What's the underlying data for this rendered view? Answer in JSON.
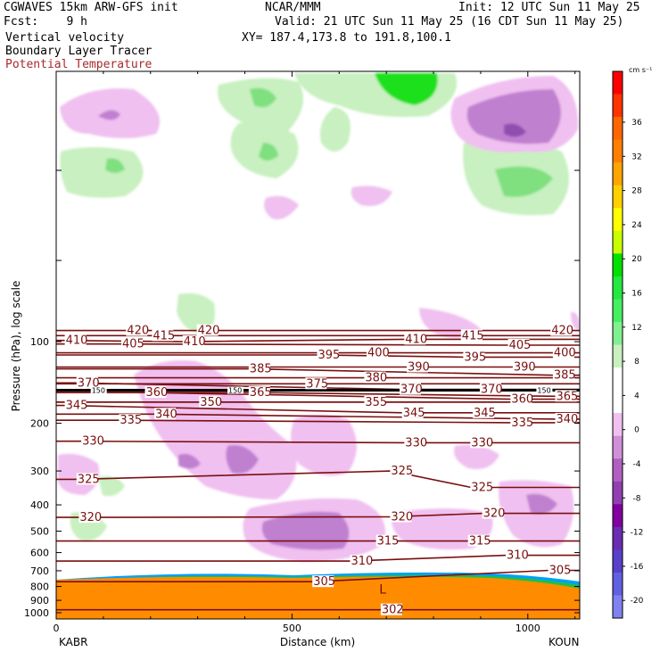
{
  "header": {
    "title_left": "CGWAVES 15km ARW-GFS init",
    "org": "NCAR/MMM",
    "init": "Init: 12 UTC Sun 11 May 25",
    "fcst": "Fcst:    9 h",
    "valid": "Valid: 21 UTC Sun 11 May 25 (16 CDT Sun 11 May 25)",
    "field1": "Vertical velocity",
    "xy": "XY= 187.4,173.8 to 191.8,100.1",
    "field2": "Boundary Layer Tracer",
    "field3": "Potential Temperature"
  },
  "colors": {
    "theta": "#7a0f0f",
    "tropopause": "#000000",
    "pbl_fill": "#ff8c00",
    "upward_light": "#c8f0c0",
    "upward_mid": "#80e080",
    "upward_strong": "#1ee01e",
    "down_light": "#f0c0f0",
    "down_mid": "#c080d0",
    "down_strong": "#9050b0"
  },
  "chart_data": {
    "type": "cross-section",
    "xlabel": "Distance (km)",
    "ylabel": "Pressure (hPa), log scale",
    "x_ticks": [
      0,
      500,
      1000
    ],
    "y_ticks": [
      100,
      200,
      300,
      400,
      500,
      600,
      700,
      800,
      900,
      1000
    ],
    "endpoints": {
      "left": "KABR",
      "right": "KOUN"
    },
    "colorbar": {
      "units": "cm s⁻¹",
      "labels": [
        "36",
        "32",
        "28",
        "24",
        "20",
        "16",
        "12",
        "8",
        "4",
        "0",
        "-4",
        "-8",
        "-12",
        "-16",
        "-20"
      ],
      "colors": [
        "#ff0000",
        "#ff3300",
        "#ff6600",
        "#ff8000",
        "#ffa500",
        "#ffd000",
        "#ffff00",
        "#c8ff00",
        "#00e000",
        "#22e840",
        "#44f060",
        "#80f090",
        "#c8f0c0",
        "#ffffff",
        "#ffffff",
        "#f0c0f0",
        "#d090d8",
        "#b060c0",
        "#9040b0",
        "#8000a0",
        "#6a2cb0",
        "#5a40c8",
        "#6060e0",
        "#8080f0"
      ]
    },
    "theta_labels": [
      {
        "text": "420",
        "x": 150,
        "p": 91
      },
      {
        "text": "420",
        "x": 300,
        "p": 91
      },
      {
        "text": "420",
        "x": 1050,
        "p": 91
      },
      {
        "text": "415",
        "x": 205,
        "p": 95
      },
      {
        "text": "415",
        "x": 860,
        "p": 95
      },
      {
        "text": "410",
        "x": 270,
        "p": 100
      },
      {
        "text": "410",
        "x": 740,
        "p": 98
      },
      {
        "text": "410",
        "x": 20,
        "p": 99
      },
      {
        "text": "405",
        "x": 140,
        "p": 102
      },
      {
        "text": "405",
        "x": 960,
        "p": 103
      },
      {
        "text": "400",
        "x": 660,
        "p": 110
      },
      {
        "text": "400",
        "x": 1055,
        "p": 110
      },
      {
        "text": "395",
        "x": 555,
        "p": 112
      },
      {
        "text": "395",
        "x": 865,
        "p": 114
      },
      {
        "text": "390",
        "x": 745,
        "p": 124
      },
      {
        "text": "390",
        "x": 970,
        "p": 124
      },
      {
        "text": "385",
        "x": 410,
        "p": 126
      },
      {
        "text": "385",
        "x": 1055,
        "p": 133
      },
      {
        "text": "380",
        "x": 655,
        "p": 136
      },
      {
        "text": "375",
        "x": 530,
        "p": 143
      },
      {
        "text": "370",
        "x": 45,
        "p": 142
      },
      {
        "text": "370",
        "x": 730,
        "p": 150
      },
      {
        "text": "370",
        "x": 900,
        "p": 150
      },
      {
        "text": "365",
        "x": 410,
        "p": 154
      },
      {
        "text": "365",
        "x": 1060,
        "p": 159
      },
      {
        "text": "360",
        "x": 190,
        "p": 154
      },
      {
        "text": "360",
        "x": 965,
        "p": 163
      },
      {
        "text": "355",
        "x": 655,
        "p": 167
      },
      {
        "text": "350",
        "x": 305,
        "p": 167
      },
      {
        "text": "345",
        "x": 20,
        "p": 172
      },
      {
        "text": "345",
        "x": 735,
        "p": 183
      },
      {
        "text": "345",
        "x": 885,
        "p": 183
      },
      {
        "text": "340",
        "x": 210,
        "p": 185
      },
      {
        "text": "340",
        "x": 1060,
        "p": 193
      },
      {
        "text": "335",
        "x": 135,
        "p": 195
      },
      {
        "text": "335",
        "x": 965,
        "p": 199
      },
      {
        "text": "330",
        "x": 55,
        "p": 233
      },
      {
        "text": "330",
        "x": 740,
        "p": 236
      },
      {
        "text": "330",
        "x": 880,
        "p": 236
      },
      {
        "text": "325",
        "x": 710,
        "p": 300
      },
      {
        "text": "325",
        "x": 880,
        "p": 345
      },
      {
        "text": "325",
        "x": 45,
        "p": 322
      },
      {
        "text": "320",
        "x": 50,
        "p": 445
      },
      {
        "text": "320",
        "x": 710,
        "p": 443
      },
      {
        "text": "320",
        "x": 905,
        "p": 430
      },
      {
        "text": "315",
        "x": 680,
        "p": 544
      },
      {
        "text": "315",
        "x": 875,
        "p": 544
      },
      {
        "text": "310",
        "x": 625,
        "p": 645
      },
      {
        "text": "310",
        "x": 955,
        "p": 614
      },
      {
        "text": "305",
        "x": 1045,
        "p": 698
      },
      {
        "text": "305",
        "x": 545,
        "p": 768
      },
      {
        "text": "302",
        "x": 690,
        "p": 975
      }
    ],
    "tropopause_labels": [
      {
        "text": "150",
        "x": 75,
        "p": 151
      },
      {
        "text": "150",
        "x": 365,
        "p": 151
      },
      {
        "text": "150",
        "x": 1020,
        "p": 151
      }
    ],
    "markers": [
      {
        "text": "L",
        "x": 685,
        "p": 850
      }
    ]
  }
}
